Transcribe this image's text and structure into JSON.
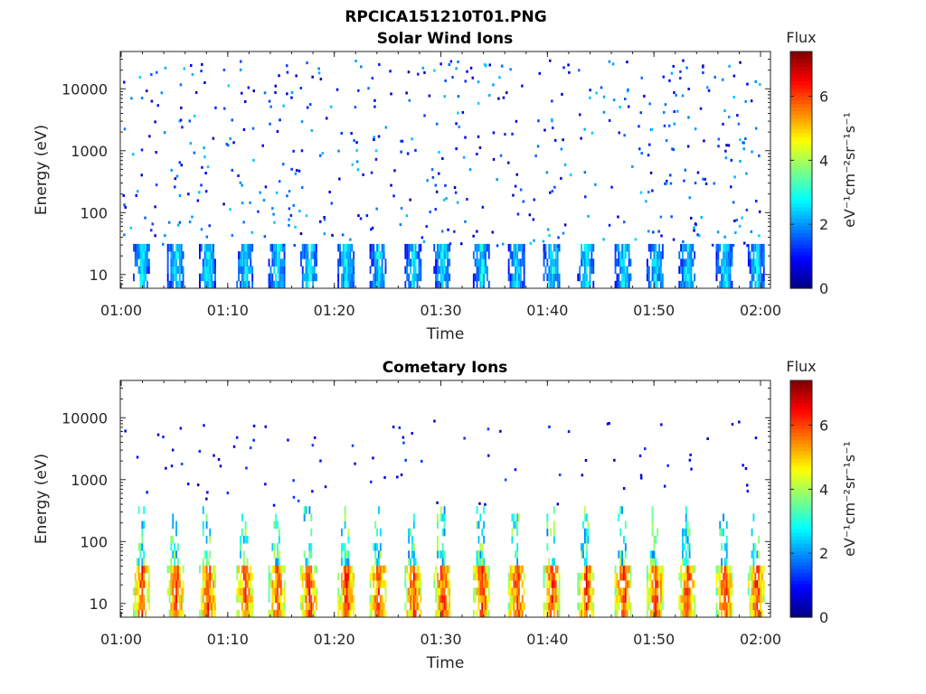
{
  "figure": {
    "title": "RPCICA151210T01.PNG",
    "background": "#ffffff"
  },
  "chart_data": [
    {
      "type": "heatmap",
      "title": "Solar Wind Ions",
      "xlabel": "Time",
      "ylabel": "Energy (eV)",
      "x_ticks": [
        "01:00",
        "01:10",
        "01:20",
        "01:30",
        "01:40",
        "01:50",
        "02:00"
      ],
      "y_ticks": [
        "10",
        "100",
        "1000",
        "10000"
      ],
      "y_scale": "log",
      "ylim": [
        6,
        40000
      ],
      "xlim": [
        "01:00",
        "02:00"
      ],
      "colorbar": {
        "title": "Flux",
        "label": "eV⁻¹cm⁻²sr⁻¹s⁻¹",
        "ticks": [
          "0",
          "2",
          "4",
          "6"
        ],
        "range": [
          0,
          7.4
        ],
        "colormap": "jet"
      },
      "pattern": {
        "low_energy_bursts": true,
        "bursts_at_minutes": [
          1.8,
          5,
          8,
          11.5,
          14.5,
          17.5,
          21,
          24,
          27.3,
          30,
          33.7,
          37,
          40.3,
          43.5,
          47,
          50,
          53,
          56.5,
          59.5
        ],
        "burst_energy_range_eV": [
          6,
          30
        ],
        "burst_flux_range": [
          0.5,
          3.2
        ],
        "sparse_counts_energy_range_eV": [
          30,
          30000
        ],
        "sparse_flux_range": [
          0.3,
          2.5
        ]
      }
    },
    {
      "type": "heatmap",
      "title": "Cometary Ions",
      "xlabel": "Time",
      "ylabel": "Energy (eV)",
      "x_ticks": [
        "01:00",
        "01:10",
        "01:20",
        "01:30",
        "01:40",
        "01:50",
        "02:00"
      ],
      "y_ticks": [
        "10",
        "100",
        "1000",
        "10000"
      ],
      "y_scale": "log",
      "ylim": [
        6,
        40000
      ],
      "xlim": [
        "01:00",
        "02:00"
      ],
      "colorbar": {
        "title": "Flux",
        "label": "eV⁻¹cm⁻²sr⁻¹s⁻¹",
        "ticks": [
          "0",
          "2",
          "4",
          "6"
        ],
        "range": [
          0,
          7.4
        ],
        "colormap": "jet"
      },
      "pattern": {
        "low_energy_bursts": true,
        "bursts_at_minutes": [
          1.8,
          5,
          8,
          11.5,
          14.5,
          17.5,
          21,
          24,
          27.3,
          30,
          33.7,
          37,
          40.3,
          43.5,
          47,
          50,
          53,
          56.5,
          59.5
        ],
        "burst_energy_range_eV": [
          6,
          45
        ],
        "burst_flux_range": [
          3.0,
          6.8
        ],
        "tail_energy_range_eV": [
          45,
          400
        ],
        "tail_flux_range": [
          1.8,
          4.2
        ],
        "sparse_counts_energy_range_eV": [
          400,
          10000
        ],
        "sparse_flux_range": [
          0.3,
          1.5
        ]
      }
    }
  ]
}
